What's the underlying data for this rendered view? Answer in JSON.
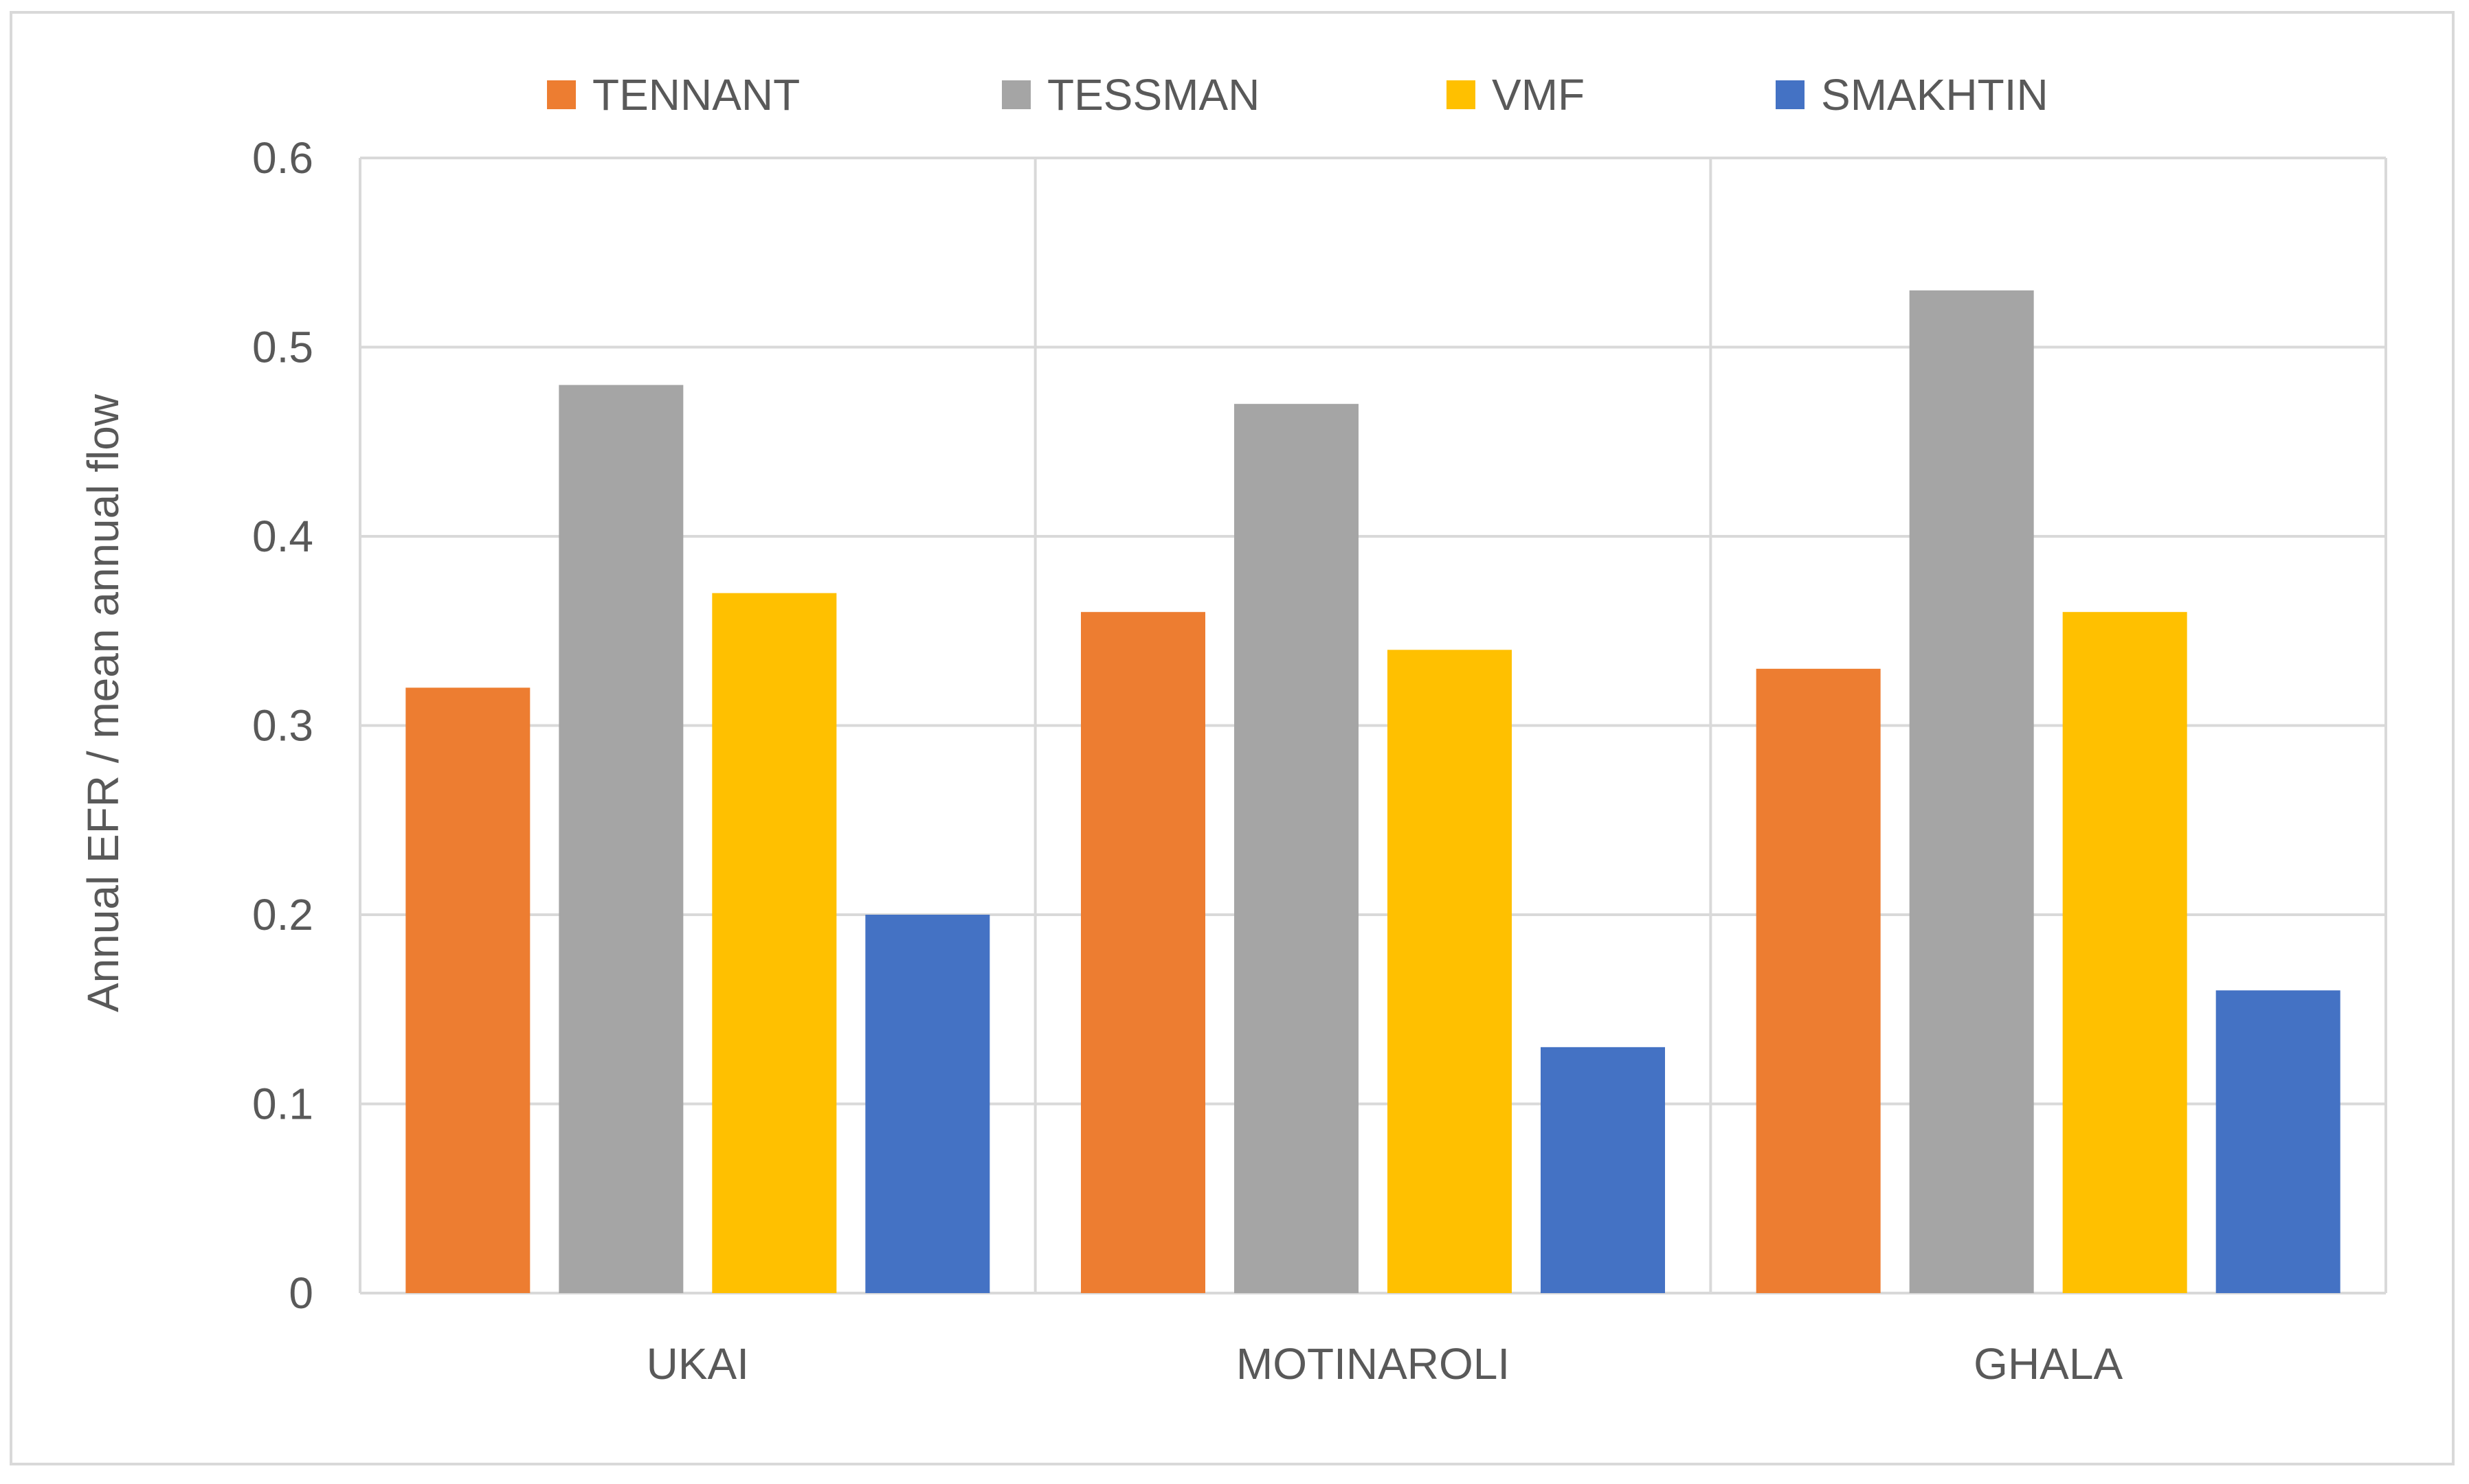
{
  "chart_data": {
    "type": "bar",
    "title": "",
    "xlabel": "",
    "ylabel": "Annual EFR / mean annual flow",
    "categories": [
      "UKAI",
      "MOTINAROLI",
      "GHALA"
    ],
    "series": [
      {
        "name": "TENNANT",
        "color": "#ED7D31",
        "values": [
          0.32,
          0.36,
          0.33
        ]
      },
      {
        "name": "TESSMAN",
        "color": "#A5A5A5",
        "values": [
          0.48,
          0.47,
          0.53
        ]
      },
      {
        "name": "VMF",
        "color": "#FFC000",
        "values": [
          0.37,
          0.34,
          0.36
        ]
      },
      {
        "name": "SMAKHTIN",
        "color": "#4472C4",
        "values": [
          0.2,
          0.13,
          0.16
        ]
      }
    ],
    "ylim": [
      0,
      0.6
    ],
    "yticks": [
      0,
      0.1,
      0.2,
      0.3,
      0.4,
      0.5,
      0.6
    ],
    "ytick_labels": [
      "0",
      "0.1",
      "0.2",
      "0.3",
      "0.4",
      "0.5",
      "0.6"
    ],
    "grid": true,
    "legend_position": "top-center"
  },
  "colors": {
    "grid": "#d9d9d9",
    "text": "#595959",
    "border": "#d9d9d9"
  }
}
